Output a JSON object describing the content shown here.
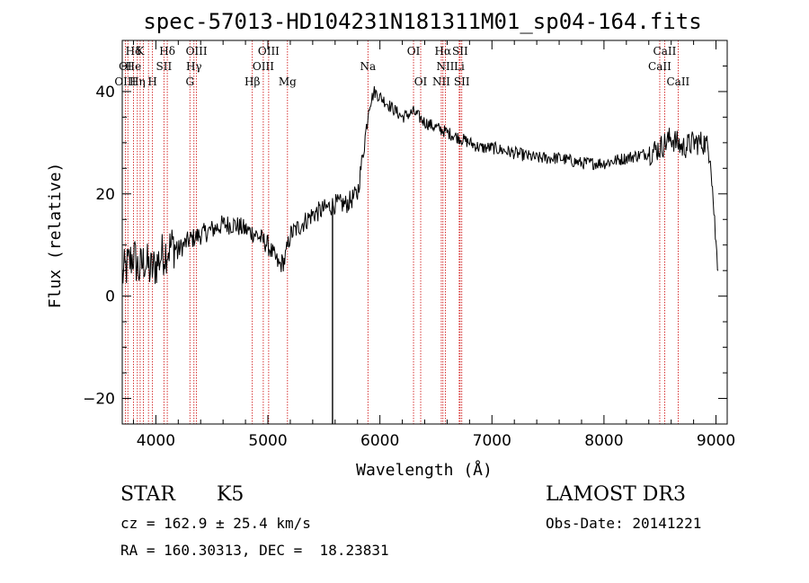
{
  "chart_data": {
    "type": "line",
    "title": "spec-57013-HD104231N181311M01_sp04-164.fits",
    "xlabel": "Wavelength (Å)",
    "ylabel": "Flux (relative)",
    "xlim": [
      3700,
      9100
    ],
    "ylim": [
      -25,
      50
    ],
    "xticks": [
      4000,
      5000,
      6000,
      7000,
      8000,
      9000
    ],
    "yticks": [
      -20,
      0,
      20,
      40
    ],
    "grid": false,
    "series": [
      {
        "name": "",
        "x": [
          3700,
          3750,
          3800,
          3850,
          3900,
          3950,
          4000,
          4050,
          4100,
          4150,
          4200,
          4300,
          4400,
          4500,
          4600,
          4700,
          4800,
          4900,
          5000,
          5050,
          5100,
          5150,
          5200,
          5300,
          5400,
          5500,
          5600,
          5700,
          5750,
          5800,
          5850,
          5880,
          5900,
          5950,
          6000,
          6100,
          6200,
          6300,
          6350,
          6400,
          6500,
          6600,
          6700,
          6800,
          6900,
          7000,
          7200,
          7400,
          7600,
          7800,
          8000,
          8200,
          8400,
          8500,
          8600,
          8700,
          8800,
          8900,
          8950,
          9000,
          9020
        ],
        "y": [
          4,
          6,
          8,
          5,
          7,
          5,
          6,
          8,
          9,
          10,
          9,
          11,
          12,
          13,
          14,
          14,
          13,
          12,
          10,
          8,
          6,
          7,
          12,
          14,
          16,
          17,
          18,
          18,
          19,
          20,
          28,
          33,
          37,
          40,
          39,
          37,
          35,
          36,
          35,
          34,
          33,
          32,
          31,
          30,
          29,
          29,
          28,
          27,
          27,
          26,
          26,
          27,
          28,
          29,
          31,
          29,
          30,
          30,
          28,
          10,
          5
        ]
      }
    ],
    "dips": [
      {
        "x": 5577,
        "y": -25
      }
    ],
    "lines_top": [
      {
        "label": "Hδ",
        "x": 3800
      },
      {
        "label": "K",
        "x": 3860
      },
      {
        "label": "Hδ",
        "x": 4102
      },
      {
        "label": "OIII",
        "x": 4363
      },
      {
        "label": "OIII",
        "x": 5007
      },
      {
        "label": "OI",
        "x": 6300
      },
      {
        "label": "Hα",
        "x": 6563
      },
      {
        "label": "SII",
        "x": 6716
      },
      {
        "label": "CaII",
        "x": 8542
      }
    ],
    "lines_mid": [
      {
        "label": "OI",
        "x": 3727
      },
      {
        "label": "He",
        "x": 3800
      },
      {
        "label": "SII",
        "x": 4072
      },
      {
        "label": "Hγ",
        "x": 4340
      },
      {
        "label": "OIII",
        "x": 4959
      },
      {
        "label": "Na",
        "x": 5893
      },
      {
        "label": "NII",
        "x": 6584
      },
      {
        "label": "Li",
        "x": 6708
      },
      {
        "label": "CaII",
        "x": 8498
      }
    ],
    "lines_low": [
      {
        "label": "OIII",
        "x": 3727
      },
      {
        "label": "Hη",
        "x": 3835
      },
      {
        "label": "H",
        "x": 3970
      },
      {
        "label": "G",
        "x": 4304
      },
      {
        "label": "Hβ",
        "x": 4861
      },
      {
        "label": "Mg",
        "x": 5175
      },
      {
        "label": "OI",
        "x": 6364
      },
      {
        "label": "NII",
        "x": 6548
      },
      {
        "label": "SII",
        "x": 6731
      },
      {
        "label": "CaII",
        "x": 8662
      }
    ],
    "marker_lines_x": [
      3727,
      3750,
      3800,
      3835,
      3860,
      3889,
      3934,
      3970,
      4072,
      4102,
      4304,
      4340,
      4363,
      4861,
      4959,
      5007,
      5175,
      5893,
      6300,
      6364,
      6548,
      6563,
      6584,
      6708,
      6716,
      6731,
      8498,
      8542,
      8662
    ]
  },
  "info": {
    "class_label": "STAR",
    "subclass": "K5",
    "survey": "LAMOST DR3",
    "cz": "cz = 162.9 ± 25.4 km/s",
    "obs_date": "Obs-Date: 20141221",
    "coords": "RA = 160.30313, DEC =  18.23831"
  },
  "colors": {
    "spectrum": "#000000",
    "marker_lines": "#cc0000"
  }
}
